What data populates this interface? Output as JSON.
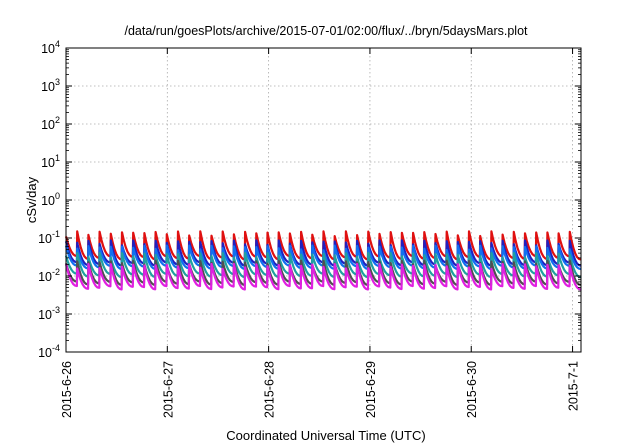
{
  "chart_data": {
    "type": "line",
    "title": "/data/run/goesPlots/archive/2015-07-01/02:00/flux/../bryn/5daysMars.plot",
    "xlabel": "Coordinated Universal Time (UTC)",
    "ylabel": "cSv/day",
    "y_scale": "log",
    "ylim": [
      0.0001,
      10000
    ],
    "y_ticks": [
      {
        "value": 0.0001,
        "mantissa": "10",
        "exp": "-4"
      },
      {
        "value": 0.001,
        "mantissa": "10",
        "exp": "-3"
      },
      {
        "value": 0.01,
        "mantissa": "10",
        "exp": "-2"
      },
      {
        "value": 0.1,
        "mantissa": "10",
        "exp": "-1"
      },
      {
        "value": 1,
        "mantissa": "10",
        "exp": "0"
      },
      {
        "value": 10,
        "mantissa": "10",
        "exp": "1"
      },
      {
        "value": 100,
        "mantissa": "10",
        "exp": "2"
      },
      {
        "value": 1000,
        "mantissa": "10",
        "exp": "3"
      },
      {
        "value": 10000,
        "mantissa": "10",
        "exp": "4"
      }
    ],
    "xlim": [
      "2015-06-26",
      "2015-07-01 02:00"
    ],
    "x_ticks": [
      {
        "value": "2015-06-26",
        "label": "2015-6-26"
      },
      {
        "value": "2015-06-27",
        "label": "2015-6-27"
      },
      {
        "value": "2015-06-28",
        "label": "2015-6-28"
      },
      {
        "value": "2015-06-29",
        "label": "2015-6-29"
      },
      {
        "value": "2015-06-30",
        "label": "2015-6-30"
      },
      {
        "value": "2015-07-01",
        "label": "2015-7-1"
      }
    ],
    "grid": true,
    "pattern": "sawtooth",
    "pulses_per_day": 9,
    "series": [
      {
        "color": "#e01010",
        "peak": 0.13,
        "base": 0.032
      },
      {
        "color": "#2020c0",
        "peak": 0.075,
        "base": 0.022
      },
      {
        "color": "#1070f0",
        "peak": 0.055,
        "base": 0.018
      },
      {
        "color": "#20a0a0",
        "peak": 0.035,
        "base": 0.011
      },
      {
        "color": "#505050",
        "peak": 0.022,
        "base": 0.0068
      },
      {
        "color": "#e020e0",
        "peak": 0.018,
        "base": 0.0052
      }
    ]
  }
}
